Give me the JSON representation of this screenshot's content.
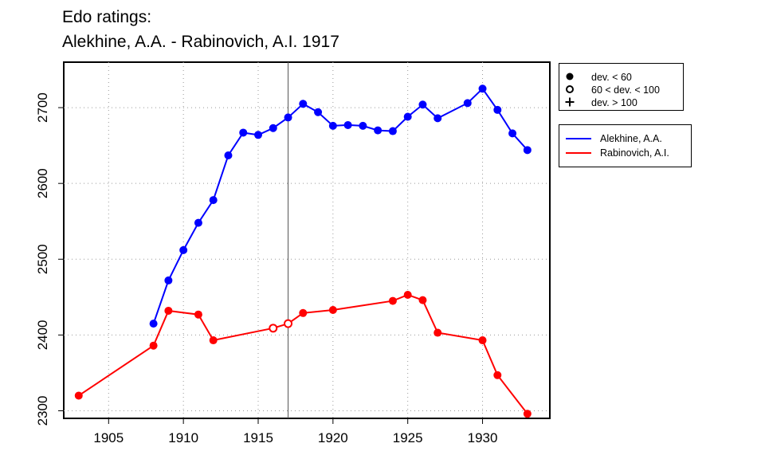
{
  "chart_data": {
    "type": "line",
    "title": "Edo ratings:",
    "subtitle": "Alekhine, A.A. - Rabinovich, A.I. 1917",
    "xlabel": "",
    "ylabel": "",
    "xlim": [
      1902,
      1934.5
    ],
    "ylim": [
      2290,
      2760
    ],
    "x_ticks": [
      "1905",
      "1910",
      "1915",
      "1920",
      "1925",
      "1930"
    ],
    "y_ticks": [
      "2300",
      "2400",
      "2500",
      "2600",
      "2700"
    ],
    "grid": true,
    "reference_line_x": 1917,
    "legend_deviation": {
      "position": "right-top",
      "entries": [
        "dev. < 60",
        "60 < dev. < 100",
        "dev. > 100"
      ]
    },
    "legend_series": {
      "position": "right",
      "entries": [
        "Alekhine, A.A.",
        "Rabinovich, A.I."
      ]
    },
    "series": [
      {
        "name": "Alekhine, A.A.",
        "color": "#0000ff",
        "points": [
          {
            "x": 1908,
            "y": 2415,
            "m": "filled"
          },
          {
            "x": 1909,
            "y": 2472,
            "m": "filled"
          },
          {
            "x": 1910,
            "y": 2512,
            "m": "filled"
          },
          {
            "x": 1911,
            "y": 2548,
            "m": "filled"
          },
          {
            "x": 1912,
            "y": 2578,
            "m": "filled"
          },
          {
            "x": 1913,
            "y": 2637,
            "m": "filled"
          },
          {
            "x": 1914,
            "y": 2667,
            "m": "filled"
          },
          {
            "x": 1915,
            "y": 2664,
            "m": "filled"
          },
          {
            "x": 1916,
            "y": 2673,
            "m": "filled"
          },
          {
            "x": 1917,
            "y": 2687,
            "m": "filled"
          },
          {
            "x": 1918,
            "y": 2705,
            "m": "filled"
          },
          {
            "x": 1919,
            "y": 2694,
            "m": "filled"
          },
          {
            "x": 1920,
            "y": 2676,
            "m": "filled"
          },
          {
            "x": 1921,
            "y": 2677,
            "m": "filled"
          },
          {
            "x": 1922,
            "y": 2676,
            "m": "filled"
          },
          {
            "x": 1923,
            "y": 2670,
            "m": "filled"
          },
          {
            "x": 1924,
            "y": 2669,
            "m": "filled"
          },
          {
            "x": 1925,
            "y": 2688,
            "m": "filled"
          },
          {
            "x": 1926,
            "y": 2704,
            "m": "filled"
          },
          {
            "x": 1927,
            "y": 2686,
            "m": "filled"
          },
          {
            "x": 1929,
            "y": 2706,
            "m": "filled"
          },
          {
            "x": 1930,
            "y": 2725,
            "m": "filled"
          },
          {
            "x": 1931,
            "y": 2697,
            "m": "filled"
          },
          {
            "x": 1932,
            "y": 2666,
            "m": "filled"
          },
          {
            "x": 1933,
            "y": 2644,
            "m": "filled"
          }
        ]
      },
      {
        "name": "Rabinovich, A.I.",
        "color": "#ff0000",
        "points": [
          {
            "x": 1903,
            "y": 2320,
            "m": "filled"
          },
          {
            "x": 1908,
            "y": 2386,
            "m": "filled"
          },
          {
            "x": 1909,
            "y": 2432,
            "m": "filled"
          },
          {
            "x": 1911,
            "y": 2427,
            "m": "filled"
          },
          {
            "x": 1912,
            "y": 2393,
            "m": "filled"
          },
          {
            "x": 1916,
            "y": 2409,
            "m": "open"
          },
          {
            "x": 1917,
            "y": 2415,
            "m": "open"
          },
          {
            "x": 1918,
            "y": 2429,
            "m": "filled"
          },
          {
            "x": 1920,
            "y": 2433,
            "m": "filled"
          },
          {
            "x": 1924,
            "y": 2445,
            "m": "filled"
          },
          {
            "x": 1925,
            "y": 2453,
            "m": "filled"
          },
          {
            "x": 1926,
            "y": 2446,
            "m": "filled"
          },
          {
            "x": 1927,
            "y": 2403,
            "m": "filled"
          },
          {
            "x": 1930,
            "y": 2393,
            "m": "filled"
          },
          {
            "x": 1931,
            "y": 2347,
            "m": "filled"
          },
          {
            "x": 1933,
            "y": 2296,
            "m": "filled"
          }
        ]
      }
    ]
  }
}
